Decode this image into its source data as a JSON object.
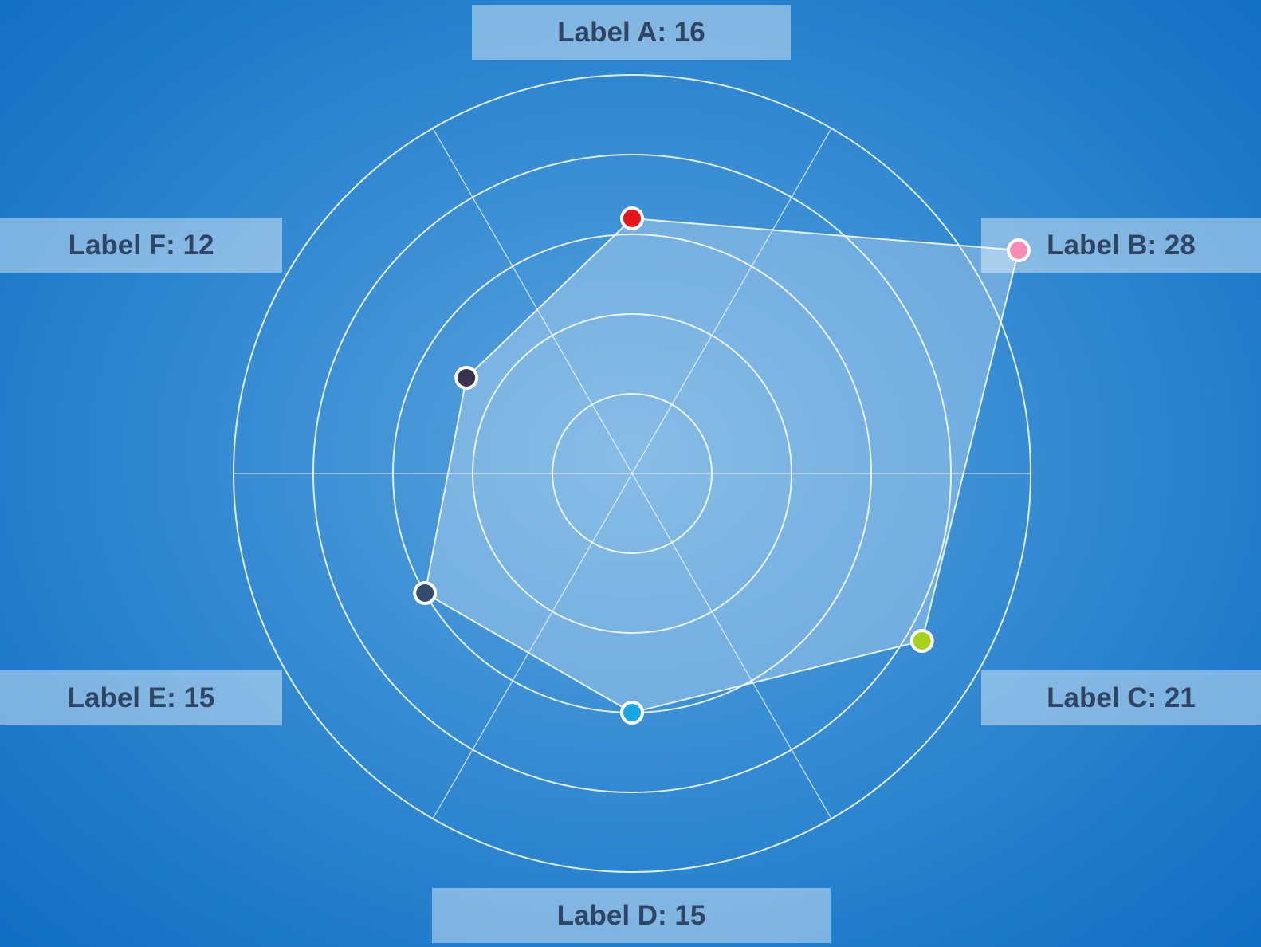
{
  "chart_data": {
    "type": "radar",
    "title": "",
    "scale_max": 25,
    "rings": 5,
    "categories": [
      "Label A",
      "Label B",
      "Label C",
      "Label D",
      "Label E",
      "Label F"
    ],
    "series": [
      {
        "values": [
          16,
          28,
          21,
          15,
          15,
          12
        ],
        "point_colors": [
          "#e8141c",
          "#ee3c82",
          "#a6d21b",
          "#15a6e6",
          "#344c6e",
          "#3a3350"
        ],
        "fill_color": "#ffffff",
        "line_color": "#ffffff"
      }
    ],
    "labels": [
      "Label A: 16",
      "Label B: 28",
      "Label C: 21",
      "Label D: 15",
      "Label E: 15",
      "Label F: 12"
    ],
    "grid": true,
    "background_color": "#2a84cf",
    "grid_color": "#ffffff"
  }
}
